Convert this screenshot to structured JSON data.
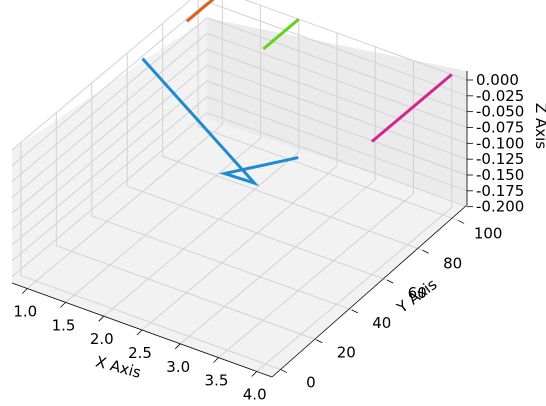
{
  "chart_data": {
    "type": "line",
    "projection": "3d",
    "grid": true,
    "xlabel": "X Axis",
    "ylabel": "Y Axis",
    "zlabel": "Z Axis",
    "xlim": [
      0.8,
      4.2
    ],
    "ylim": [
      -5,
      105
    ],
    "zlim": [
      -0.21,
      0.0
    ],
    "x_ticks": [
      1.0,
      1.5,
      2.0,
      2.5,
      3.0,
      3.5,
      4.0
    ],
    "x_tick_labels": [
      "1.0",
      "1.5",
      "2.0",
      "2.5",
      "3.0",
      "3.5",
      "4.0"
    ],
    "y_ticks": [
      0,
      20,
      40,
      60,
      80,
      100
    ],
    "y_tick_labels": [
      "0",
      "20",
      "40",
      "60",
      "80",
      "100"
    ],
    "z_ticks": [
      0.0,
      -0.025,
      -0.05,
      -0.075,
      -0.1,
      -0.125,
      -0.15,
      -0.175,
      -0.2
    ],
    "z_tick_labels": [
      "0.000",
      "-0.025",
      "-0.050",
      "-0.075",
      "-0.100",
      "-0.125",
      "-0.150",
      "-0.175",
      "-0.200"
    ],
    "series": [
      {
        "color": "#1f8ad0",
        "points": [
          [
            1.0,
            60,
            0
          ],
          [
            2.0,
            80,
            -0.2
          ],
          [
            3.0,
            20,
            0
          ],
          [
            3.5,
            40,
            0
          ]
        ]
      },
      {
        "color": "#d9601a",
        "points": [
          [
            1.0,
            85,
            0
          ],
          [
            1.0,
            105,
            0
          ]
        ]
      },
      {
        "color": "#66d01a",
        "points": [
          [
            2.0,
            85,
            0
          ],
          [
            2.0,
            105,
            0
          ]
        ]
      },
      {
        "color": "#d4248f",
        "points": [
          [
            4.0,
            60,
            0
          ],
          [
            4.0,
            105,
            0
          ]
        ]
      }
    ]
  }
}
